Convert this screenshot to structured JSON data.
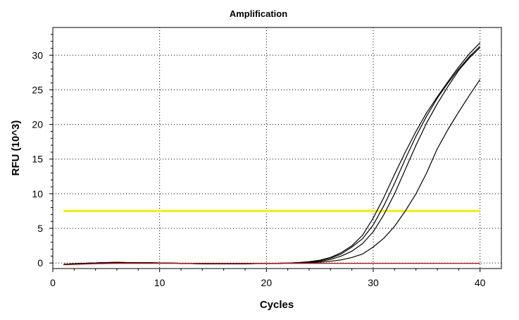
{
  "chart_data": {
    "type": "line",
    "title": "Amplification",
    "xlabel": "Cycles",
    "ylabel": "RFU (10^3)",
    "xlim": [
      0,
      42
    ],
    "ylim": [
      -0.8,
      34
    ],
    "xticks": [
      0,
      10,
      20,
      30,
      40
    ],
    "yticks": [
      0,
      5,
      10,
      15,
      20,
      25,
      30
    ],
    "grid": true,
    "threshold": {
      "value": 7.5,
      "color": "#f0f000"
    },
    "x": [
      1,
      2,
      3,
      4,
      5,
      6,
      7,
      8,
      9,
      10,
      11,
      12,
      13,
      14,
      15,
      16,
      17,
      18,
      19,
      20,
      21,
      22,
      23,
      24,
      25,
      26,
      27,
      28,
      29,
      30,
      31,
      32,
      33,
      34,
      35,
      36,
      37,
      38,
      39,
      40
    ],
    "series": [
      {
        "color": "#000000",
        "values": [
          -0.2,
          -0.1,
          -0.05,
          0,
          0.05,
          0.08,
          0.05,
          0.03,
          0.02,
          0,
          -0.02,
          -0.05,
          -0.08,
          -0.1,
          -0.12,
          -0.1,
          -0.1,
          -0.1,
          -0.08,
          -0.08,
          -0.05,
          -0.02,
          0.05,
          0.2,
          0.4,
          0.8,
          1.5,
          2.5,
          4.0,
          6.5,
          9.5,
          12.8,
          16.0,
          19.0,
          21.7,
          24.0,
          26.2,
          28.3,
          30.2,
          31.8
        ]
      },
      {
        "color": "#000000",
        "values": [
          -0.2,
          -0.1,
          -0.05,
          0,
          0.05,
          0.08,
          0.05,
          0.03,
          0.02,
          0,
          -0.02,
          -0.05,
          -0.08,
          -0.1,
          -0.12,
          -0.1,
          -0.1,
          -0.1,
          -0.08,
          -0.08,
          -0.05,
          -0.02,
          0.05,
          0.15,
          0.35,
          0.7,
          1.3,
          2.3,
          3.5,
          5.5,
          8.3,
          11.5,
          15.0,
          18.3,
          21.2,
          23.8,
          26.0,
          28.0,
          29.8,
          31.3
        ]
      },
      {
        "color": "#000000",
        "values": [
          -0.2,
          -0.1,
          -0.05,
          0,
          0.05,
          0.08,
          0.05,
          0.03,
          0.02,
          0,
          -0.02,
          -0.05,
          -0.08,
          -0.1,
          -0.12,
          -0.1,
          -0.1,
          -0.1,
          -0.08,
          -0.08,
          -0.05,
          -0.02,
          0.02,
          0.1,
          0.25,
          0.5,
          1.0,
          1.7,
          2.8,
          4.5,
          7.0,
          10.0,
          13.5,
          17.0,
          20.2,
          23.0,
          25.5,
          27.8,
          29.6,
          31.1
        ]
      },
      {
        "color": "#000000",
        "values": [
          -0.2,
          -0.1,
          -0.05,
          0,
          0.05,
          0.08,
          0.05,
          0.03,
          0.02,
          0,
          -0.02,
          -0.05,
          -0.08,
          -0.1,
          -0.12,
          -0.1,
          -0.1,
          -0.1,
          -0.08,
          -0.08,
          -0.05,
          -0.02,
          0,
          0.05,
          0.12,
          0.25,
          0.45,
          0.8,
          1.3,
          2.3,
          3.6,
          5.3,
          7.5,
          10.0,
          13.0,
          16.5,
          19.3,
          21.8,
          24.2,
          26.5
        ]
      },
      {
        "color": "#cc0000",
        "values": [
          -0.25,
          -0.2,
          -0.15,
          -0.1,
          -0.08,
          -0.05,
          -0.05,
          -0.05,
          -0.05,
          -0.05,
          -0.05,
          -0.05,
          -0.05,
          -0.05,
          -0.05,
          -0.05,
          -0.05,
          -0.05,
          -0.05,
          -0.05,
          -0.05,
          -0.05,
          -0.05,
          -0.05,
          -0.05,
          -0.05,
          -0.05,
          -0.05,
          -0.05,
          -0.05,
          -0.05,
          -0.05,
          -0.05,
          -0.05,
          -0.05,
          -0.05,
          -0.05,
          -0.05,
          -0.05,
          -0.05
        ]
      }
    ]
  }
}
